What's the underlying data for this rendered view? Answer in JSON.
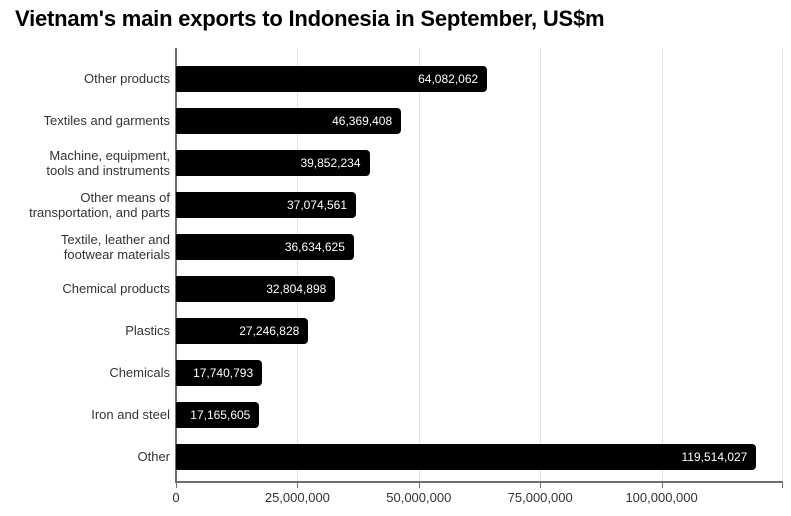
{
  "page": {
    "background": "#ffffff"
  },
  "chart_data": {
    "type": "bar",
    "orientation": "horizontal",
    "title": "Vietnam's main exports to Indonesia in September, US$m",
    "xlabel": "",
    "ylabel": "",
    "categories": [
      "Other products",
      "Textiles and garments",
      "Machine, equipment,\ntools and instruments",
      "Other means of\ntransportation, and parts",
      "Textile, leather and\nfootwear materials",
      "Chemical products",
      "Plastics",
      "Chemicals",
      "Iron and steel",
      "Other"
    ],
    "values": [
      64082062,
      46369408,
      39852234,
      37074561,
      36634625,
      32804898,
      27246828,
      17740793,
      17165605,
      119514027
    ],
    "value_labels": [
      "64,082,062",
      "46,369,408",
      "39,852,234",
      "37,074,561",
      "36,634,625",
      "32,804,898",
      "27,246,828",
      "17,740,793",
      "17,165,605",
      "119,514,027"
    ],
    "xlim": [
      0,
      125000000
    ],
    "x_ticks": {
      "values": [
        0,
        25000000,
        50000000,
        75000000,
        100000000,
        125000000
      ],
      "labels": [
        "0",
        "25,000,000",
        "50,000,000",
        "75,000,000",
        "100,000,000",
        ""
      ]
    },
    "grid": "vertical-on",
    "legend": "none",
    "value_labels_position": "inside-end",
    "colors": {
      "background": "#ffffff",
      "title": "#000000",
      "bar": "#000000",
      "bar_label": "#ffffff",
      "axis_line": "#6e6e6e",
      "gridline": "#e2e2e2",
      "tick_label": "#333333",
      "category_label": "#333333"
    }
  }
}
